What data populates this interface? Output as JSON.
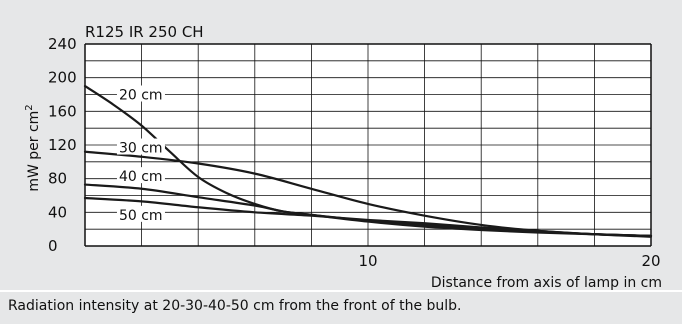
{
  "chart_data": {
    "type": "line",
    "title": "R125 IR 250 CH",
    "ylabel_main": "mW per cm",
    "ylabel_sup": "2",
    "xlabel": "Distance from axis of lamp in cm",
    "xlim": [
      0,
      20
    ],
    "ylim": [
      0,
      240
    ],
    "x_ticks": [
      10,
      20
    ],
    "y_ticks": [
      0,
      40,
      80,
      120,
      160,
      200,
      240
    ],
    "grid": true,
    "series": [
      {
        "name": "20 cm",
        "x": [
          0,
          1,
          2,
          3,
          4,
          5,
          6,
          7,
          8,
          10,
          12,
          14,
          16,
          18,
          20
        ],
        "y": [
          190,
          168,
          143,
          112,
          82,
          63,
          50,
          41,
          37,
          29,
          23,
          19,
          16,
          14,
          12
        ]
      },
      {
        "name": "30 cm",
        "x": [
          0,
          2,
          4,
          6,
          8,
          10,
          12,
          14,
          16,
          18,
          20
        ],
        "y": [
          112,
          106,
          98,
          86,
          68,
          50,
          36,
          25,
          18,
          14,
          11
        ]
      },
      {
        "name": "40 cm",
        "x": [
          0,
          2,
          4,
          6,
          7,
          8,
          10,
          12,
          14,
          16,
          18,
          20
        ],
        "y": [
          73,
          68,
          58,
          48,
          41,
          37,
          30,
          25,
          20,
          17,
          14,
          12
        ]
      },
      {
        "name": "50 cm",
        "x": [
          0,
          2,
          4,
          6,
          8,
          10,
          12,
          14,
          16,
          18,
          20
        ],
        "y": [
          57,
          53,
          46,
          40,
          36,
          31,
          27,
          22,
          18,
          14,
          12
        ]
      }
    ]
  },
  "caption": "Radiation intensity at 20-30-40-50 cm from the front of the bulb."
}
